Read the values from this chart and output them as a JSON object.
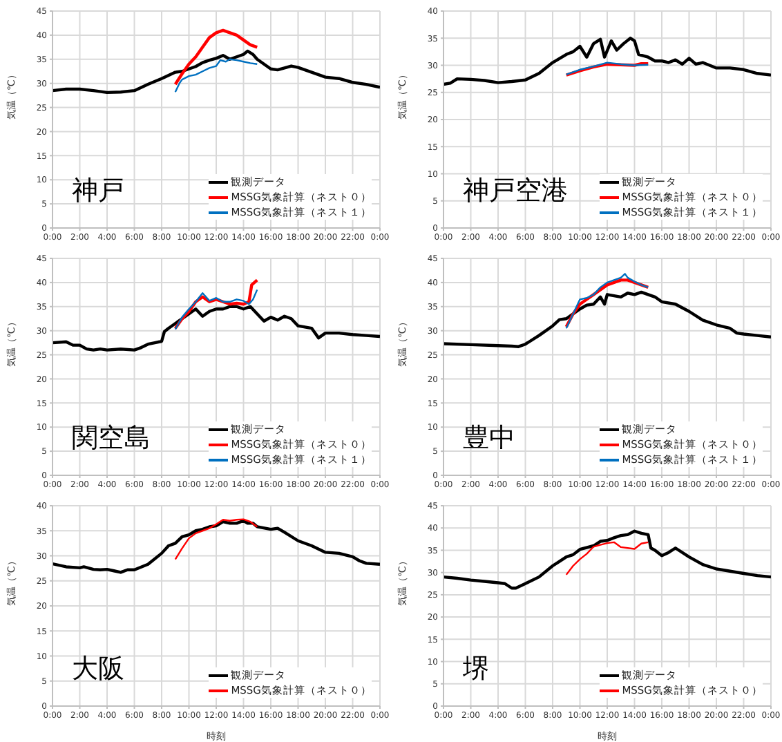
{
  "chart_data": [
    {
      "type": "line",
      "ylabel": "気温（℃）",
      "annotations": [
        "神戸"
      ],
      "xlim": [
        0,
        24
      ],
      "xticks": [
        {
          "value": 0,
          "label": "0:00"
        },
        {
          "value": 2,
          "label": "2:00"
        },
        {
          "value": 4,
          "label": "4:00"
        },
        {
          "value": 6,
          "label": "6:00"
        },
        {
          "value": 8,
          "label": "8:00"
        },
        {
          "value": 10,
          "label": "10:00"
        },
        {
          "value": 12,
          "label": "12:00"
        },
        {
          "value": 14,
          "label": "14:00"
        },
        {
          "value": 16,
          "label": "16:00"
        },
        {
          "value": 18,
          "label": "18:00"
        },
        {
          "value": 20,
          "label": "20:00"
        },
        {
          "value": 22,
          "label": "22:00"
        },
        {
          "value": 24,
          "label": "0:00"
        }
      ],
      "ylim": [
        0,
        45
      ],
      "yticks": [
        0,
        5,
        10,
        15,
        20,
        25,
        30,
        35,
        40,
        45
      ],
      "grid": true,
      "legend": "bottom right",
      "series": [
        {
          "name": "観測データ",
          "color": "#000000",
          "x": [
            0,
            1,
            2,
            3,
            4,
            5,
            6,
            7,
            8,
            9,
            9.5,
            10,
            10.5,
            11,
            11.5,
            12,
            12.5,
            13,
            13.5,
            14,
            14.3,
            14.7,
            15,
            15.5,
            16,
            16.5,
            17,
            17.5,
            18,
            19,
            20,
            21,
            22,
            23,
            24
          ],
          "values": [
            28.5,
            28.8,
            28.8,
            28.5,
            28.1,
            28.2,
            28.5,
            29.8,
            31,
            32.3,
            32.5,
            33,
            33.5,
            34.3,
            34.8,
            35.2,
            35.8,
            35,
            35.5,
            36,
            36.7,
            36,
            35,
            34,
            33,
            32.8,
            33.2,
            33.6,
            33.3,
            32.3,
            31.3,
            31,
            30.2,
            29.8,
            29.2
          ]
        },
        {
          "name": "MSSG気象計算（ネスト０）",
          "color": "#ff0000",
          "x": [
            9,
            9.5,
            10,
            10.5,
            11,
            11.5,
            12,
            12.5,
            13,
            13.5,
            14,
            14.5,
            15
          ],
          "values": [
            29.8,
            32,
            34,
            35.5,
            37.5,
            39.5,
            40.5,
            41,
            40.5,
            40,
            39,
            38,
            37.5
          ]
        },
        {
          "name": "MSSG気象計算（ネスト１）",
          "color": "#0070c0",
          "x": [
            9,
            9.3,
            9.5,
            10,
            10.5,
            11,
            11.5,
            12,
            12.3,
            12.7,
            13,
            13.5,
            14,
            14.5,
            15
          ],
          "values": [
            28.2,
            30,
            30.8,
            31.5,
            31.8,
            32.5,
            33.2,
            33.6,
            34.8,
            34.5,
            35,
            34.8,
            34.5,
            34.2,
            34
          ]
        }
      ]
    },
    {
      "type": "line",
      "ylabel": "気温（℃）",
      "annotations": [
        "神戸空港"
      ],
      "xlim": [
        0,
        24
      ],
      "xticks": [
        {
          "value": 0,
          "label": "0:00"
        },
        {
          "value": 2,
          "label": "2:00"
        },
        {
          "value": 4,
          "label": "4:00"
        },
        {
          "value": 6,
          "label": "6:00"
        },
        {
          "value": 8,
          "label": "8:00"
        },
        {
          "value": 10,
          "label": "10:00"
        },
        {
          "value": 12,
          "label": "12:00"
        },
        {
          "value": 14,
          "label": "14:00"
        },
        {
          "value": 16,
          "label": "16:00"
        },
        {
          "value": 18,
          "label": "18:00"
        },
        {
          "value": 20,
          "label": "20:00"
        },
        {
          "value": 22,
          "label": "22:00"
        },
        {
          "value": 24,
          "label": "0:00"
        }
      ],
      "ylim": [
        0,
        40
      ],
      "yticks": [
        0,
        5,
        10,
        15,
        20,
        25,
        30,
        35,
        40
      ],
      "grid": true,
      "legend": "bottom right",
      "series": [
        {
          "name": "観測データ",
          "color": "#000000",
          "x": [
            0,
            0.5,
            1,
            2,
            3,
            4,
            5,
            6,
            7,
            8,
            9,
            9.5,
            10,
            10.5,
            11,
            11.5,
            11.8,
            12.3,
            12.7,
            13.2,
            13.7,
            14,
            14.3,
            15,
            15.5,
            16,
            16.5,
            17,
            17.5,
            18,
            18.5,
            19,
            20,
            21,
            22,
            23,
            24
          ],
          "values": [
            26.5,
            26.7,
            27.5,
            27.4,
            27.2,
            26.8,
            27,
            27.3,
            28.5,
            30.5,
            32,
            32.5,
            33.5,
            31.5,
            34,
            34.8,
            31.5,
            34.5,
            32.8,
            34,
            35,
            34.5,
            32,
            31.5,
            30.8,
            30.8,
            30.5,
            31,
            30.2,
            31.3,
            30.2,
            30.5,
            29.5,
            29.5,
            29.2,
            28.5,
            28.2
          ]
        },
        {
          "name": "MSSG気象計算（ネスト０）",
          "color": "#ff0000",
          "x": [
            9,
            10,
            11,
            12,
            13,
            14,
            14.5,
            15
          ],
          "values": [
            28.2,
            29,
            29.7,
            30.2,
            30.1,
            30,
            30.3,
            30.3
          ]
        },
        {
          "name": "MSSG気象計算（ネスト１）",
          "color": "#0070c0",
          "x": [
            9,
            10,
            11,
            12,
            13,
            14,
            15
          ],
          "values": [
            28.3,
            29.2,
            29.8,
            30.5,
            30.2,
            30,
            30.1
          ]
        }
      ]
    },
    {
      "type": "line",
      "ylabel": "気温（℃）",
      "annotations": [
        "関空島"
      ],
      "xlim": [
        0,
        24
      ],
      "xticks": [
        {
          "value": 0,
          "label": "0:00"
        },
        {
          "value": 2,
          "label": "2:00"
        },
        {
          "value": 4,
          "label": "4:00"
        },
        {
          "value": 6,
          "label": "6:00"
        },
        {
          "value": 8,
          "label": "8:00"
        },
        {
          "value": 10,
          "label": "10:00"
        },
        {
          "value": 12,
          "label": "12:00"
        },
        {
          "value": 14,
          "label": "14:00"
        },
        {
          "value": 16,
          "label": "16:00"
        },
        {
          "value": 18,
          "label": "18:00"
        },
        {
          "value": 20,
          "label": "20:00"
        },
        {
          "value": 22,
          "label": "22:00"
        },
        {
          "value": 24,
          "label": "0:00"
        }
      ],
      "ylim": [
        0,
        45
      ],
      "yticks": [
        0,
        5,
        10,
        15,
        20,
        25,
        30,
        35,
        40,
        45
      ],
      "grid": true,
      "legend": "bottom right",
      "series": [
        {
          "name": "観測データ",
          "color": "#000000",
          "x": [
            0,
            1,
            1.5,
            2,
            2.5,
            3,
            3.5,
            4,
            5,
            6,
            6.5,
            7,
            7.5,
            8,
            8.2,
            8.5,
            9,
            10,
            10.5,
            11,
            11.5,
            12,
            12.5,
            13,
            13.5,
            14,
            14.5,
            15,
            15.5,
            16,
            16.5,
            17,
            17.5,
            18,
            19,
            19.5,
            20,
            21,
            22,
            23,
            24
          ],
          "values": [
            27.5,
            27.7,
            27,
            27,
            26.2,
            26,
            26.2,
            26,
            26.2,
            26,
            26.5,
            27.2,
            27.5,
            27.8,
            29.8,
            30.5,
            31.5,
            33.5,
            34.5,
            33,
            34,
            34.5,
            34.5,
            35,
            35,
            34.5,
            35,
            33.5,
            32,
            32.8,
            32.2,
            33,
            32.5,
            31,
            30.5,
            28.5,
            29.5,
            29.5,
            29.2,
            29,
            28.8
          ]
        },
        {
          "name": "MSSG気象計算（ネスト０）",
          "color": "#ff0000",
          "x": [
            9,
            9.5,
            10,
            10.5,
            11,
            11.5,
            12,
            12.5,
            13,
            13.5,
            14,
            14.4,
            14.6,
            15
          ],
          "values": [
            30.5,
            32.5,
            34,
            36,
            37,
            36,
            36.5,
            36,
            35.5,
            35.7,
            35.5,
            36,
            39.5,
            40.5
          ]
        },
        {
          "name": "MSSG気象計算（ネスト１）",
          "color": "#0070c0",
          "x": [
            9,
            9.5,
            10,
            10.5,
            11,
            11.5,
            12,
            12.5,
            13,
            13.5,
            14,
            14.4,
            14.7,
            15
          ],
          "values": [
            30.3,
            32.8,
            34.5,
            36,
            37.8,
            36.2,
            36.8,
            36,
            36,
            36.5,
            36.2,
            35.5,
            36.5,
            38.5
          ]
        }
      ]
    },
    {
      "type": "line",
      "ylabel": "気温（℃）",
      "annotations": [
        "豊中"
      ],
      "xlim": [
        0,
        24
      ],
      "xticks": [
        {
          "value": 0,
          "label": "0:00"
        },
        {
          "value": 2,
          "label": "2:00"
        },
        {
          "value": 4,
          "label": "4:00"
        },
        {
          "value": 6,
          "label": "6:00"
        },
        {
          "value": 8,
          "label": "8:00"
        },
        {
          "value": 10,
          "label": "10:00"
        },
        {
          "value": 12,
          "label": "12:00"
        },
        {
          "value": 14,
          "label": "14:00"
        },
        {
          "value": 16,
          "label": "16:00"
        },
        {
          "value": 18,
          "label": "18:00"
        },
        {
          "value": 20,
          "label": "20:00"
        },
        {
          "value": 22,
          "label": "22:00"
        },
        {
          "value": 24,
          "label": "0:00"
        }
      ],
      "ylim": [
        0,
        45
      ],
      "yticks": [
        0,
        5,
        10,
        15,
        20,
        25,
        30,
        35,
        40,
        45
      ],
      "grid": true,
      "legend": "bottom right",
      "series": [
        {
          "name": "観測データ",
          "color": "#000000",
          "x": [
            0,
            2,
            4,
            5,
            5.5,
            6,
            7,
            8,
            8.5,
            9,
            10,
            10.5,
            11,
            11.5,
            11.8,
            12,
            13,
            13.5,
            14,
            14.5,
            15,
            15.5,
            16,
            17,
            18,
            19,
            20,
            21,
            21.5,
            22,
            23,
            24
          ],
          "values": [
            27.3,
            27.1,
            26.9,
            26.8,
            26.7,
            27.2,
            29,
            31,
            32.3,
            32.5,
            34.5,
            35.3,
            35.5,
            37,
            35.5,
            37.5,
            37,
            37.8,
            37.5,
            38,
            37.5,
            37,
            36,
            35.5,
            34,
            32.2,
            31.2,
            30.5,
            29.5,
            29.3,
            29,
            28.7
          ]
        },
        {
          "name": "MSSG気象計算（ネスト０）",
          "color": "#ff0000",
          "x": [
            9,
            9.5,
            10,
            10.5,
            11,
            11.5,
            12,
            12.5,
            13,
            13.5,
            14,
            14.5,
            15
          ],
          "values": [
            30.8,
            33.5,
            35.5,
            36.5,
            37.5,
            38.5,
            39.5,
            40,
            40.5,
            40.5,
            40,
            39.5,
            39
          ]
        },
        {
          "name": "MSSG気象計算（ネスト１）",
          "color": "#0070c0",
          "x": [
            9,
            9.5,
            10,
            10.5,
            11,
            11.5,
            12,
            12.5,
            13,
            13.3,
            13.5,
            14,
            14.5,
            15
          ],
          "values": [
            30.5,
            33.5,
            36.5,
            36.8,
            37.5,
            39,
            40,
            40.5,
            41,
            41.8,
            41,
            40.2,
            39.5,
            39
          ]
        }
      ]
    },
    {
      "type": "line",
      "ylabel": "気温（℃）",
      "xlabel": "時刻",
      "annotations": [
        "大阪"
      ],
      "xlim": [
        0,
        24
      ],
      "xticks": [
        {
          "value": 0,
          "label": "0:00"
        },
        {
          "value": 2,
          "label": "2:00"
        },
        {
          "value": 4,
          "label": "4:00"
        },
        {
          "value": 6,
          "label": "6:00"
        },
        {
          "value": 8,
          "label": "8:00"
        },
        {
          "value": 10,
          "label": "10:00"
        },
        {
          "value": 12,
          "label": "12:00"
        },
        {
          "value": 14,
          "label": "14:00"
        },
        {
          "value": 16,
          "label": "16:00"
        },
        {
          "value": 18,
          "label": "18:00"
        },
        {
          "value": 20,
          "label": "20:00"
        },
        {
          "value": 22,
          "label": "22:00"
        },
        {
          "value": 24,
          "label": "0:00"
        }
      ],
      "ylim": [
        0,
        40
      ],
      "yticks": [
        0,
        5,
        10,
        15,
        20,
        25,
        30,
        35,
        40
      ],
      "grid": true,
      "legend": "bottom right",
      "series": [
        {
          "name": "観測データ",
          "color": "#000000",
          "x": [
            0,
            1,
            2,
            2.3,
            3,
            3.5,
            4,
            4.5,
            5,
            5.5,
            6,
            7,
            8,
            8.5,
            9,
            9.5,
            10,
            10.5,
            11,
            11.5,
            12,
            12.5,
            13,
            13.5,
            14,
            14.3,
            14.7,
            15,
            16,
            16.5,
            17,
            18,
            19,
            20,
            21,
            22,
            22.5,
            23,
            24
          ],
          "values": [
            28.4,
            27.8,
            27.6,
            27.8,
            27.3,
            27.2,
            27.3,
            27,
            26.7,
            27.2,
            27.2,
            28.3,
            30.5,
            32,
            32.5,
            33.8,
            34.2,
            35,
            35.3,
            35.8,
            36,
            36.8,
            36.5,
            36.5,
            37,
            36.5,
            36.5,
            35.8,
            35.3,
            35.5,
            34.7,
            33,
            32,
            30.7,
            30.5,
            29.8,
            29,
            28.5,
            28.3
          ]
        },
        {
          "name": "MSSG気象計算（ネスト０）",
          "color": "#ff0000",
          "x": [
            9,
            9.5,
            10,
            10.5,
            11,
            11.5,
            12,
            12.5,
            13,
            13.5,
            14,
            14.5,
            15
          ],
          "values": [
            29.3,
            31.5,
            33.5,
            34.5,
            35,
            35.5,
            36.3,
            37.2,
            37,
            37.2,
            37.3,
            36.8,
            35.8
          ]
        }
      ]
    },
    {
      "type": "line",
      "ylabel": "気温（℃）",
      "xlabel": "時刻",
      "annotations": [
        "堺"
      ],
      "xlim": [
        0,
        24
      ],
      "xticks": [
        {
          "value": 0,
          "label": "0:00"
        },
        {
          "value": 2,
          "label": "2:00"
        },
        {
          "value": 4,
          "label": "4:00"
        },
        {
          "value": 6,
          "label": "6:00"
        },
        {
          "value": 8,
          "label": "8:00"
        },
        {
          "value": 10,
          "label": "10:00"
        },
        {
          "value": 12,
          "label": "12:00"
        },
        {
          "value": 14,
          "label": "14:00"
        },
        {
          "value": 16,
          "label": "16:00"
        },
        {
          "value": 18,
          "label": "18:00"
        },
        {
          "value": 20,
          "label": "20:00"
        },
        {
          "value": 22,
          "label": "22:00"
        },
        {
          "value": 24,
          "label": "0:00"
        }
      ],
      "ylim": [
        0,
        45
      ],
      "yticks": [
        0,
        5,
        10,
        15,
        20,
        25,
        30,
        35,
        40,
        45
      ],
      "grid": true,
      "legend": "bottom right",
      "series": [
        {
          "name": "観測データ",
          "color": "#000000",
          "x": [
            0,
            1,
            2,
            3,
            4,
            4.5,
            5,
            5.3,
            6,
            7,
            8,
            8.5,
            9,
            9.5,
            10,
            11,
            11.5,
            12,
            12.5,
            13,
            13.5,
            14,
            14.5,
            15,
            15.2,
            15.5,
            16,
            16.5,
            17,
            18,
            19,
            20,
            21,
            22,
            23,
            24
          ],
          "values": [
            29,
            28.7,
            28.3,
            28,
            27.7,
            27.5,
            26.5,
            26.5,
            27.5,
            29,
            31.5,
            32.5,
            33.5,
            34,
            35.2,
            36,
            37,
            37.2,
            37.8,
            38.3,
            38.5,
            39.3,
            38.8,
            38.5,
            35.5,
            35,
            33.8,
            34.5,
            35.5,
            33.5,
            31.8,
            30.8,
            30.3,
            29.8,
            29.3,
            29
          ]
        },
        {
          "name": "MSSG気象計算（ネスト０）",
          "color": "#ff0000",
          "x": [
            9,
            9.5,
            10,
            10.5,
            11,
            11.5,
            12,
            12.5,
            13,
            13.5,
            14,
            14.5,
            15
          ],
          "values": [
            29.5,
            31.5,
            33,
            34.2,
            35.8,
            36.2,
            36.6,
            36.8,
            35.7,
            35.5,
            35.3,
            36.5,
            36.8
          ]
        }
      ]
    }
  ]
}
